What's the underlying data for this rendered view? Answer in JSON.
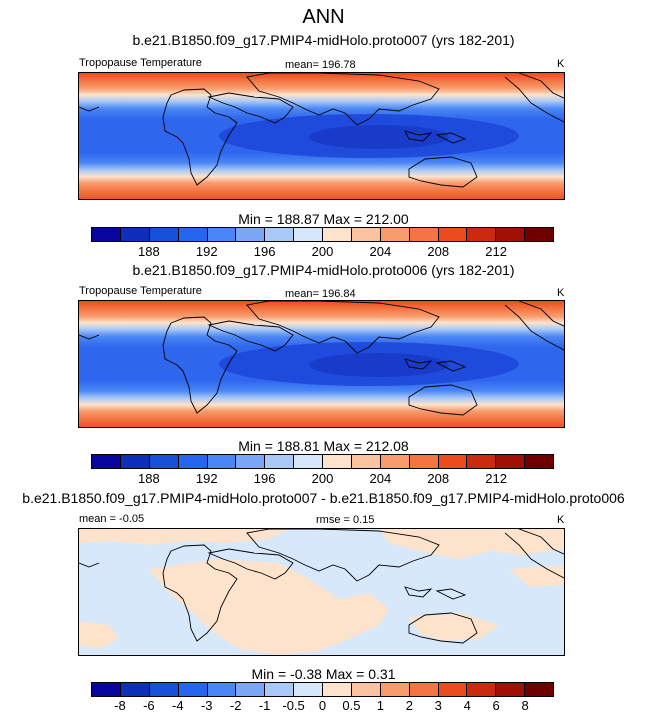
{
  "chart_data": [
    {
      "type": "heatmap",
      "figure_title": "ANN",
      "title": "b.e21.B1850.f09_g17.PMIP4-midHolo.proto007 (yrs 182-201)",
      "left_label": "Tropopause Temperature",
      "mean_label": "mean= 196.78",
      "units": "K",
      "minmax_label": "Min = 188.87 Max = 212.00",
      "colorbar_ticks": [
        "188",
        "192",
        "196",
        "200",
        "204",
        "208",
        "212"
      ],
      "colorbar_colors": [
        "#08049f",
        "#0d2fb9",
        "#1550d6",
        "#2467ee",
        "#4a86f5",
        "#7aa8f6",
        "#a9c9f7",
        "#d7e7fb",
        "#fde3cc",
        "#fbc3a0",
        "#f89c6e",
        "#f47543",
        "#ec4a1f",
        "#cc2a0e",
        "#a01004",
        "#6e0000"
      ]
    },
    {
      "type": "heatmap",
      "title": "b.e21.B1850.f09_g17.PMIP4-midHolo.proto006 (yrs 182-201)",
      "left_label": "Tropopause Temperature",
      "mean_label": "mean= 196.84",
      "units": "K",
      "minmax_label": "Min = 188.81 Max = 212.08",
      "colorbar_ticks": [
        "188",
        "192",
        "196",
        "200",
        "204",
        "208",
        "212"
      ],
      "colorbar_colors": [
        "#08049f",
        "#0d2fb9",
        "#1550d6",
        "#2467ee",
        "#4a86f5",
        "#7aa8f6",
        "#a9c9f7",
        "#d7e7fb",
        "#fde3cc",
        "#fbc3a0",
        "#f89c6e",
        "#f47543",
        "#ec4a1f",
        "#cc2a0e",
        "#a01004",
        "#6e0000"
      ]
    },
    {
      "type": "heatmap",
      "title": "b.e21.B1850.f09_g17.PMIP4-midHolo.proto007 - b.e21.B1850.f09_g17.PMIP4-midHolo.proto006",
      "mean_label": "mean = -0.05",
      "rmse_label": "rmse = 0.15",
      "units": "K",
      "minmax_label": "Min = -0.38 Max = 0.31",
      "colorbar_ticks": [
        "-8",
        "-6",
        "-4",
        "-3",
        "-2",
        "-1",
        "-0.5",
        "0",
        "0.5",
        "1",
        "2",
        "3",
        "4",
        "6",
        "8"
      ],
      "colorbar_colors": [
        "#08049f",
        "#0d2fb9",
        "#1550d6",
        "#2467ee",
        "#4a86f5",
        "#7aa8f6",
        "#a9c9f7",
        "#d7e7fb",
        "#fde3cc",
        "#fbc3a0",
        "#f89c6e",
        "#f47543",
        "#ec4a1f",
        "#cc2a0e",
        "#a01004",
        "#6e0000"
      ]
    }
  ],
  "colors": {
    "deep_blue": "#1c46d8",
    "mid_blue": "#2f66ee",
    "light_blue": "#7aa8f6",
    "pale_blue": "#d7e8fb",
    "pale_orange": "#fde3cc",
    "orange": "#f47543",
    "red_orange": "#ec4a1f"
  }
}
